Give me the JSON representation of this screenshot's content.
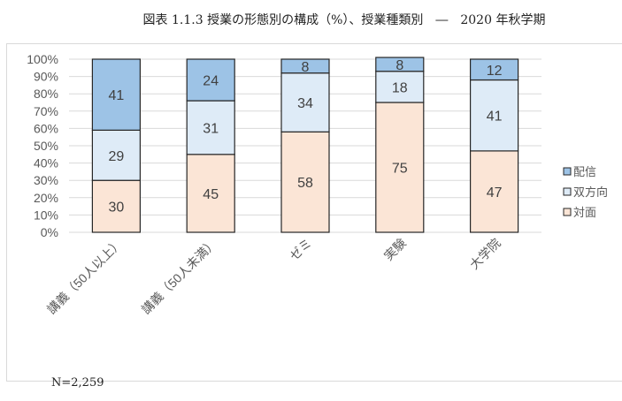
{
  "title": "図表 1.1.3 授業の形態別の構成（%）、授業種類別　―　2020 年秋学期",
  "note": "N=2,259",
  "chart_data": {
    "type": "bar",
    "stacked": true,
    "categories": [
      "講義（50人以上）",
      "講義（50人未満）",
      "ゼミ",
      "実験",
      "大学院"
    ],
    "series": [
      {
        "name": "対面",
        "values": [
          30,
          45,
          58,
          75,
          47
        ],
        "color": "#fbe5d6"
      },
      {
        "name": "双方向",
        "values": [
          29,
          31,
          34,
          18,
          41
        ],
        "color": "#deebf7"
      },
      {
        "name": "配信",
        "values": [
          41,
          24,
          8,
          8,
          12
        ],
        "color": "#9dc3e6"
      }
    ],
    "yticks": [
      "0%",
      "10%",
      "20%",
      "30%",
      "40%",
      "50%",
      "60%",
      "70%",
      "80%",
      "90%",
      "100%"
    ],
    "ylim": [
      0,
      100
    ],
    "grid": true,
    "legend": "right",
    "legend_order": [
      "配信",
      "双方向",
      "対面"
    ]
  }
}
